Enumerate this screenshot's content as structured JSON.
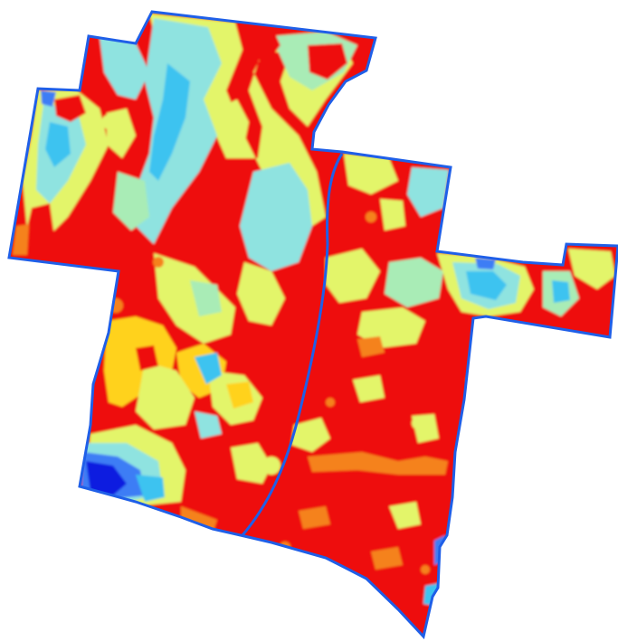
{
  "map": {
    "palette": {
      "very_high": "#ee1111",
      "high": "#f5821f",
      "mid_high": "#ffd21a",
      "mid": "#e3f56a",
      "mid_low": "#a9ecb6",
      "low": "#8fe3e0",
      "lower": "#3cc3f0",
      "very_low": "#3d7df5",
      "lowest": "#0a1ee0",
      "boundary": "#1f5fe8",
      "background": "#ffffff"
    },
    "zones": [
      "very_high",
      "high",
      "mid_high",
      "mid",
      "mid_low",
      "low",
      "lower",
      "very_low",
      "lowest"
    ]
  }
}
